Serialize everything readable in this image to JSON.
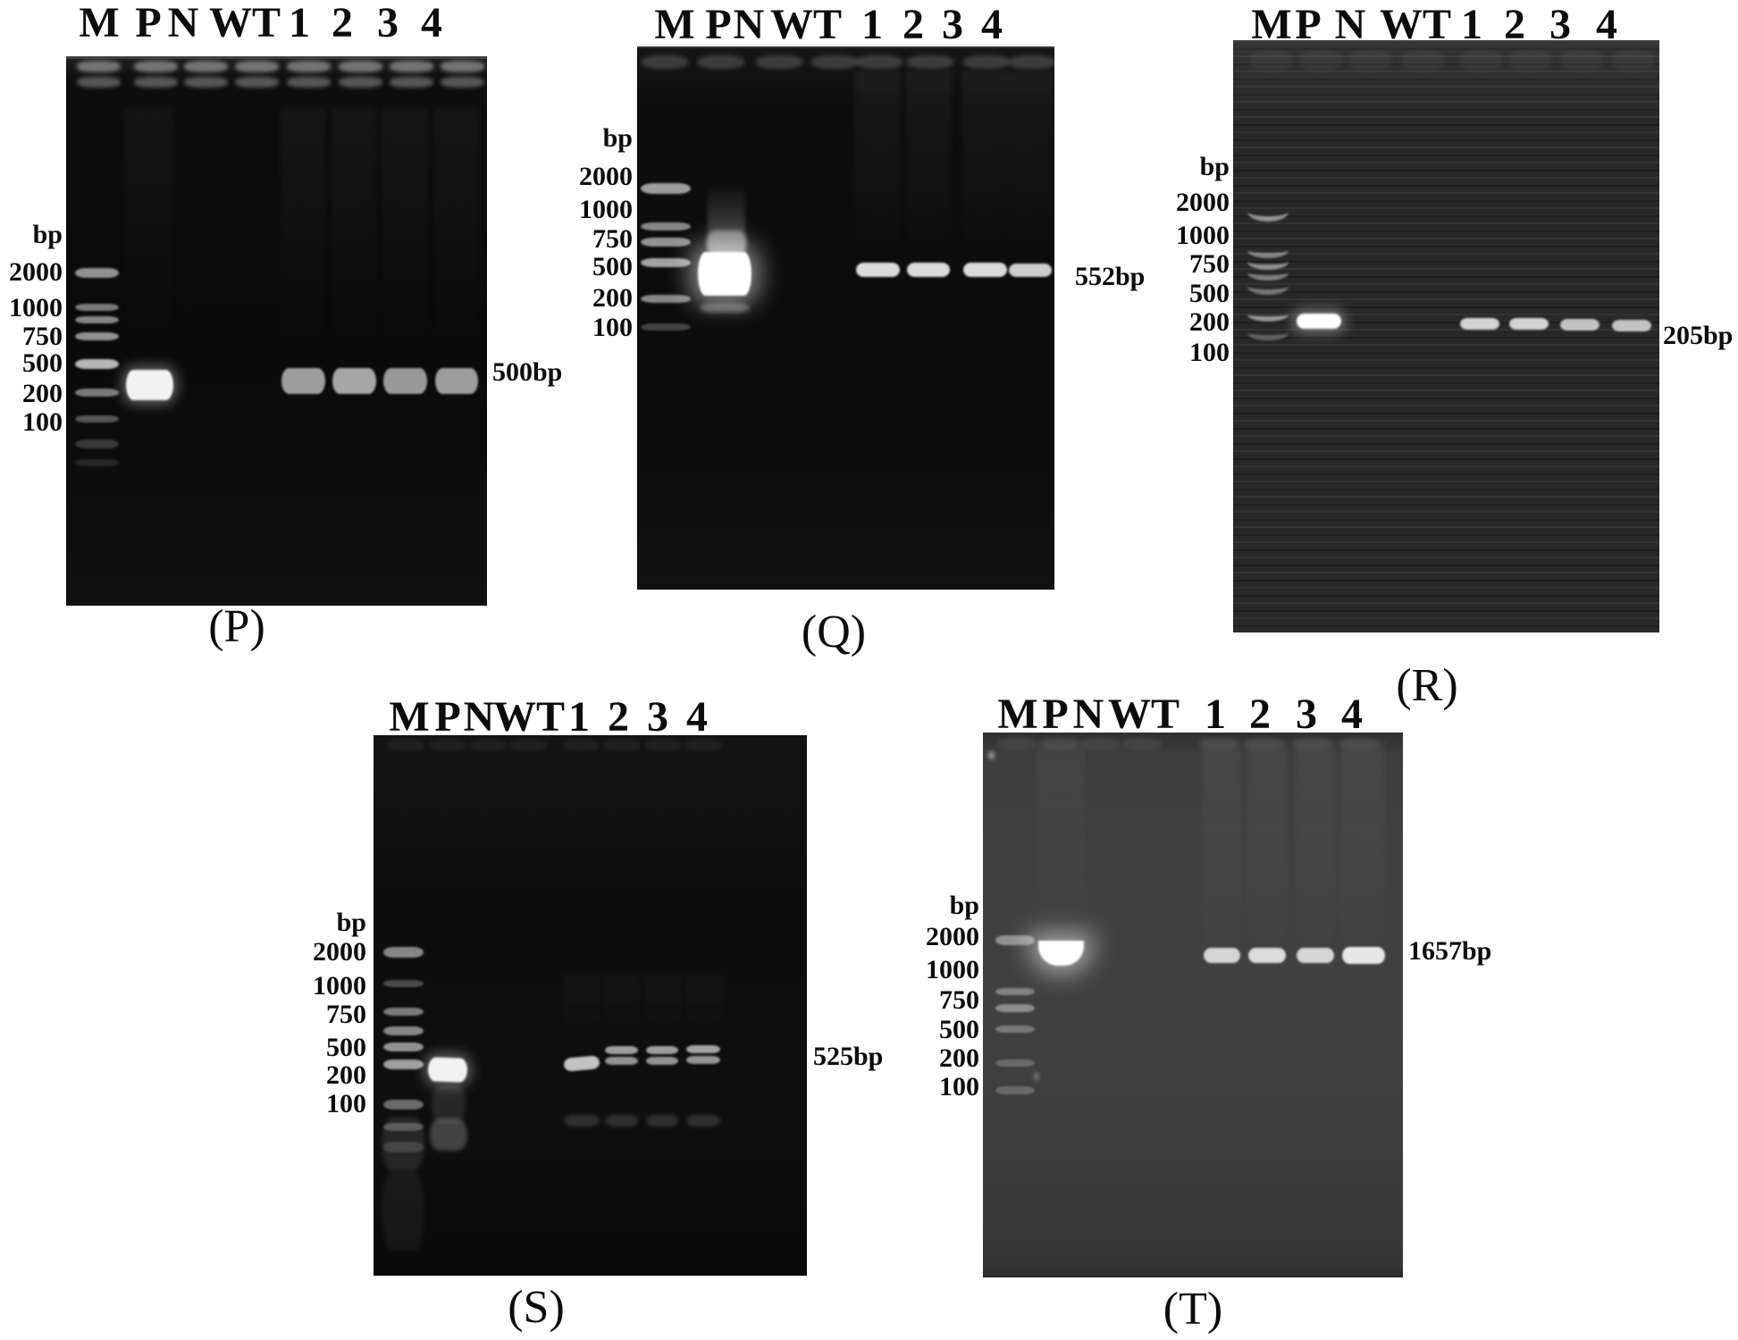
{
  "figure": {
    "panels": [
      {
        "id": "P",
        "caption": "(P)",
        "lane_labels": [
          "M",
          "P",
          "N",
          "WT",
          "1",
          "2",
          "3",
          "4"
        ],
        "ladder_unit": "bp",
        "ladder_sizes": [
          "2000",
          "1000",
          "750",
          "500",
          "200",
          "100"
        ],
        "size_annotation": "500bp",
        "bands": {
          "positive_control_lane": "P",
          "product_lanes": [
            "1",
            "2",
            "3",
            "4"
          ],
          "empty_lanes": [
            "N",
            "WT"
          ],
          "product_size": "500bp"
        }
      },
      {
        "id": "Q",
        "caption": "(Q)",
        "lane_labels": [
          "M",
          "P",
          "N",
          "WT",
          "1",
          "2",
          "3",
          "4"
        ],
        "ladder_unit": "bp",
        "ladder_sizes": [
          "2000",
          "1000",
          "750",
          "500",
          "200",
          "100"
        ],
        "size_annotation": "552bp",
        "bands": {
          "positive_control_lane": "P",
          "product_lanes": [
            "1",
            "2",
            "3",
            "4"
          ],
          "empty_lanes": [
            "N",
            "WT"
          ],
          "product_size": "552bp"
        }
      },
      {
        "id": "R",
        "caption": "(R)",
        "lane_labels": [
          "M",
          "P",
          "N",
          "WT",
          "1",
          "2",
          "3",
          "4"
        ],
        "ladder_unit": "bp",
        "ladder_sizes": [
          "2000",
          "1000",
          "750",
          "500",
          "200",
          "100"
        ],
        "size_annotation": "205bp",
        "bands": {
          "positive_control_lane": "P",
          "product_lanes": [
            "1",
            "2",
            "3",
            "4"
          ],
          "empty_lanes": [
            "N",
            "WT"
          ],
          "product_size": "205bp"
        }
      },
      {
        "id": "S",
        "caption": "(S)",
        "lane_labels": [
          "M",
          "P",
          "N",
          "WT",
          "1",
          "2",
          "3",
          "4"
        ],
        "ladder_unit": "bp",
        "ladder_sizes": [
          "2000",
          "1000",
          "750",
          "500",
          "200",
          "100"
        ],
        "size_annotation": "525bp",
        "bands": {
          "positive_control_lane": "P",
          "product_lanes": [
            "1",
            "2",
            "3",
            "4"
          ],
          "empty_lanes": [
            "N",
            "WT"
          ],
          "product_size": "525bp"
        }
      },
      {
        "id": "T",
        "caption": "(T)",
        "lane_labels": [
          "M",
          "P",
          "N",
          "WT",
          "1",
          "2",
          "3",
          "4"
        ],
        "ladder_unit": "bp",
        "ladder_sizes": [
          "2000",
          "1000",
          "750",
          "500",
          "200",
          "100"
        ],
        "size_annotation": "1657bp",
        "bands": {
          "positive_control_lane": "P",
          "product_lanes": [
            "1",
            "2",
            "3",
            "4"
          ],
          "empty_lanes": [
            "N",
            "WT"
          ],
          "product_size": "1657bp"
        }
      }
    ]
  }
}
